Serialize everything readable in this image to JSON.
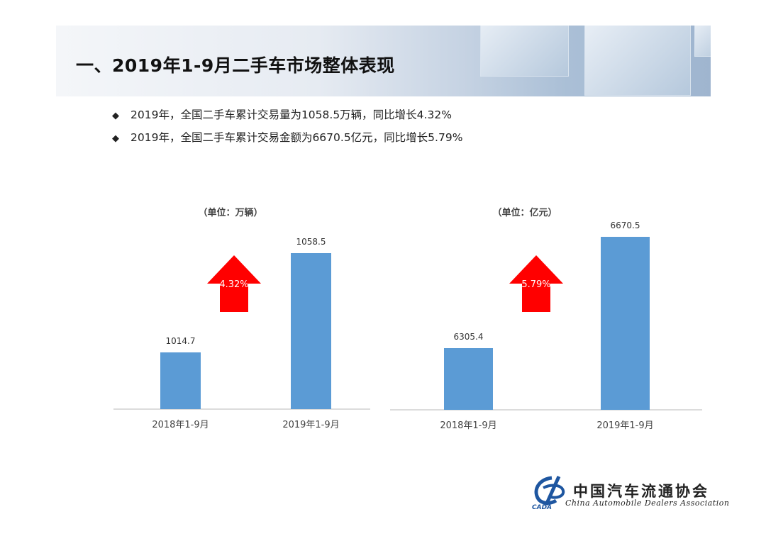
{
  "header": {
    "title": "一、2019年1-9月二手车市场整体表现"
  },
  "bullets": [
    {
      "icon": "diamond-icon",
      "text": "2019年，全国二手车累计交易量为1058.5万辆，同比增长4.32%"
    },
    {
      "icon": "diamond-icon",
      "text": "2019年，全国二手车累计交易金额为6670.5亿元，同比增长5.79%"
    }
  ],
  "chart_data": [
    {
      "type": "bar",
      "unit_label": "（单位：万辆）",
      "categories": [
        "2018年1-9月",
        "2019年1-9月"
      ],
      "values": [
        1014.7,
        1058.5
      ],
      "value_labels": [
        "1014.7",
        "1058.5"
      ],
      "growth_label": "4.32%",
      "bar_color": "#5b9bd5",
      "arrow_color": "#ff0000"
    },
    {
      "type": "bar",
      "unit_label": "（单位：亿元）",
      "categories": [
        "2018年1-9月",
        "2019年1-9月"
      ],
      "values": [
        6305.4,
        6670.5
      ],
      "value_labels": [
        "6305.4",
        "6670.5"
      ],
      "growth_label": "5.79%",
      "bar_color": "#5b9bd5",
      "arrow_color": "#ff0000"
    }
  ],
  "logo": {
    "cn": "中国汽车流通协会",
    "en": "China Automobile Dealers Association",
    "mark_text": "CADA"
  }
}
